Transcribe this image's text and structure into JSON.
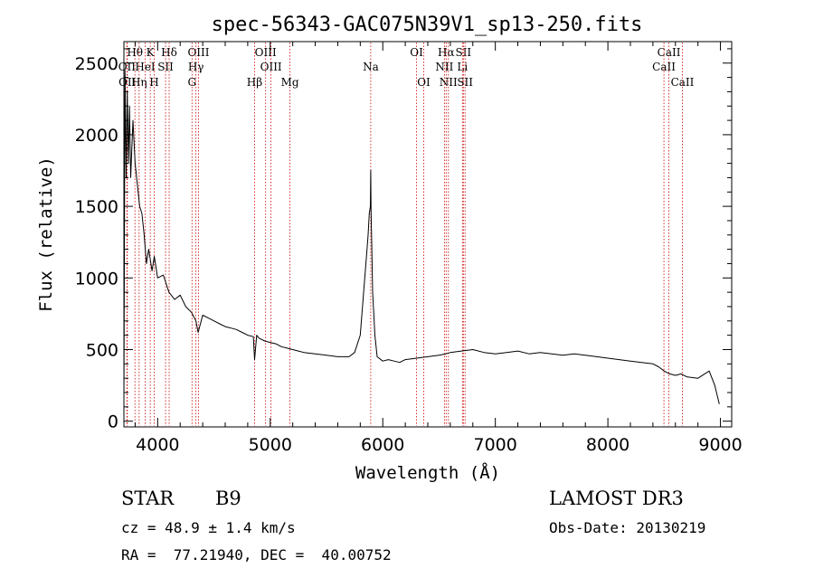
{
  "chart_data": {
    "type": "line",
    "title": "spec-56343-GAC075N39V1_sp13-250.fits",
    "xlabel": "Wavelength (Å)",
    "ylabel": "Flux (relative)",
    "xlim": [
      3700,
      9100
    ],
    "ylim": [
      -40,
      2650
    ],
    "xticks": [
      4000,
      5000,
      6000,
      7000,
      8000,
      9000
    ],
    "yticks": [
      0,
      500,
      1000,
      1500,
      2000,
      2500
    ],
    "series": [
      {
        "name": "flux",
        "x": [
          3700,
          3710,
          3720,
          3730,
          3740,
          3750,
          3760,
          3780,
          3800,
          3820,
          3840,
          3860,
          3880,
          3900,
          3920,
          3950,
          3970,
          4000,
          4050,
          4100,
          4150,
          4200,
          4250,
          4300,
          4340,
          4360,
          4400,
          4450,
          4500,
          4550,
          4600,
          4650,
          4700,
          4750,
          4800,
          4850,
          4861,
          4880,
          4900,
          4950,
          5000,
          5050,
          5100,
          5150,
          5200,
          5250,
          5300,
          5400,
          5500,
          5600,
          5700,
          5750,
          5800,
          5820,
          5840,
          5860,
          5870,
          5880,
          5890,
          5893,
          5896,
          5900,
          5910,
          5930,
          5950,
          6000,
          6050,
          6100,
          6150,
          6200,
          6300,
          6400,
          6500,
          6560,
          6600,
          6700,
          6800,
          6900,
          7000,
          7100,
          7200,
          7300,
          7400,
          7500,
          7600,
          7700,
          7800,
          7900,
          8000,
          8100,
          8200,
          8300,
          8400,
          8450,
          8500,
          8550,
          8600,
          8650,
          8700,
          8800,
          8900,
          8950,
          8990
        ],
        "values": [
          150,
          2450,
          1700,
          2300,
          1800,
          2200,
          1700,
          2100,
          1800,
          1650,
          1500,
          1450,
          1300,
          1100,
          1200,
          1050,
          1150,
          1000,
          1020,
          900,
          850,
          880,
          800,
          760,
          700,
          620,
          740,
          720,
          700,
          680,
          660,
          650,
          640,
          620,
          600,
          590,
          430,
          600,
          580,
          560,
          550,
          540,
          520,
          510,
          500,
          490,
          480,
          470,
          460,
          450,
          450,
          480,
          600,
          800,
          1000,
          1200,
          1300,
          1450,
          1500,
          1750,
          1450,
          1300,
          900,
          600,
          450,
          420,
          430,
          420,
          410,
          430,
          440,
          450,
          460,
          470,
          480,
          490,
          500,
          480,
          470,
          480,
          490,
          470,
          480,
          470,
          460,
          470,
          460,
          450,
          440,
          430,
          420,
          410,
          400,
          380,
          350,
          330,
          320,
          330,
          310,
          300,
          350,
          250,
          120
        ]
      }
    ],
    "line_markers": [
      {
        "label": "Hθ",
        "wavelength": 3798,
        "row": 1
      },
      {
        "label": "OII",
        "wavelength": 3727,
        "row": 2
      },
      {
        "label": "OII",
        "wavelength": 3730,
        "row": 3
      },
      {
        "label": "K",
        "wavelength": 3934,
        "row": 1
      },
      {
        "label": "HeI",
        "wavelength": 3889,
        "row": 2
      },
      {
        "label": "Hη",
        "wavelength": 3835,
        "row": 3
      },
      {
        "label": "SII",
        "wavelength": 4070,
        "row": 2
      },
      {
        "label": "H",
        "wavelength": 3969,
        "row": 3
      },
      {
        "label": "Hδ",
        "wavelength": 4102,
        "row": 1
      },
      {
        "label": "OIII",
        "wavelength": 4363,
        "row": 1
      },
      {
        "label": "Hγ",
        "wavelength": 4340,
        "row": 2
      },
      {
        "label": "G",
        "wavelength": 4305,
        "row": 3
      },
      {
        "label": "OIII",
        "wavelength": 4959,
        "row": 1
      },
      {
        "label": "OIII",
        "wavelength": 5007,
        "row": 2
      },
      {
        "label": "Hβ",
        "wavelength": 4861,
        "row": 3
      },
      {
        "label": "Mg",
        "wavelength": 5175,
        "row": 3
      },
      {
        "label": "Na",
        "wavelength": 5893,
        "row": 2
      },
      {
        "label": "OI",
        "wavelength": 6300,
        "row": 1
      },
      {
        "label": "OI",
        "wavelength": 6364,
        "row": 3
      },
      {
        "label": "Hα",
        "wavelength": 6563,
        "row": 1
      },
      {
        "label": "SII",
        "wavelength": 6716,
        "row": 1
      },
      {
        "label": "NII",
        "wavelength": 6548,
        "row": 2
      },
      {
        "label": "Li",
        "wavelength": 6708,
        "row": 2
      },
      {
        "label": "NII",
        "wavelength": 6583,
        "row": 3
      },
      {
        "label": "SII",
        "wavelength": 6731,
        "row": 3
      },
      {
        "label": "CaII",
        "wavelength": 8542,
        "row": 1
      },
      {
        "label": "CaII",
        "wavelength": 8498,
        "row": 2
      },
      {
        "label": "CaII",
        "wavelength": 8662,
        "row": 3
      }
    ]
  },
  "info": {
    "object_class": "STAR",
    "subclass": "B9",
    "survey": "LAMOST DR3",
    "redshift": "cz = 48.9 ± 1.4 km/s",
    "obs_date": "Obs-Date: 20130219",
    "coords": "RA =  77.21940, DEC =  40.00752"
  },
  "colors": {
    "line_marker": "#cc0000",
    "spectrum": "#000000",
    "axes": "#000000"
  }
}
